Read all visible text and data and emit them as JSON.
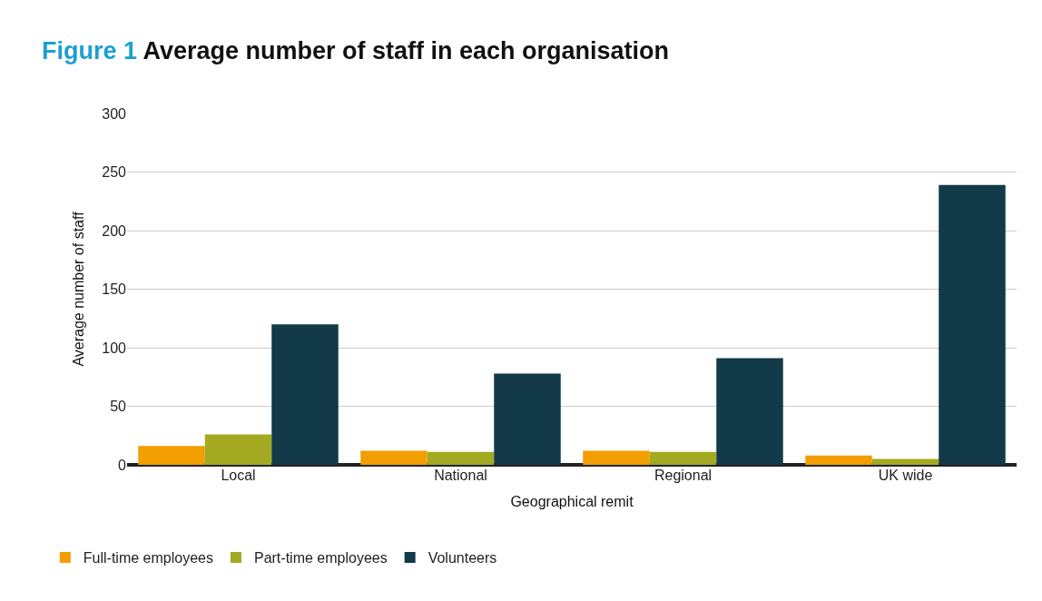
{
  "chart_data": {
    "type": "bar",
    "title": "Figure 1 Average number of staff in each organisation",
    "xlabel": "Geographical remit",
    "ylabel": "Average number of staff",
    "categories": [
      "Local",
      "National",
      "Regional",
      "UK wide"
    ],
    "series": [
      {
        "name": "Full-time employees",
        "color": "#f29e00",
        "values": [
          16,
          12,
          12,
          8
        ]
      },
      {
        "name": "Part-time employees",
        "color": "#a3aa21",
        "values": [
          26,
          11,
          11,
          5
        ]
      },
      {
        "name": "Volunteers",
        "color": "#123a48",
        "values": [
          120,
          78,
          91,
          239
        ]
      }
    ],
    "ylim": [
      0,
      300
    ],
    "yticks": [
      0,
      50,
      100,
      150,
      200,
      250,
      300
    ],
    "grid": "y",
    "legend": "bottom left"
  }
}
